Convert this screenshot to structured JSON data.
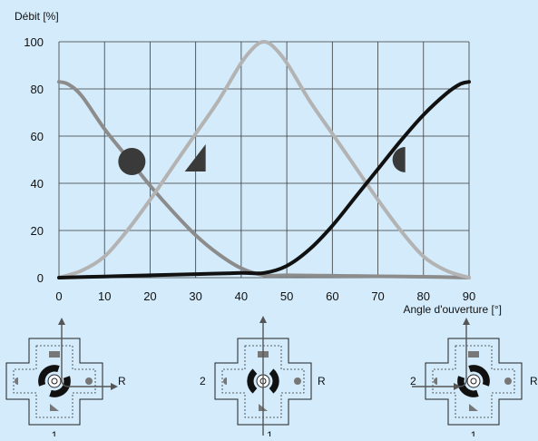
{
  "chart_data": {
    "type": "line",
    "ylabel": "Débit [%]",
    "xlabel": "Angle d'ouverture [°]",
    "xlim": [
      0,
      90
    ],
    "ylim": [
      0,
      100
    ],
    "x_ticks": [
      "0",
      "10",
      "20",
      "30",
      "40",
      "50",
      "60",
      "70",
      "80",
      "90"
    ],
    "y_ticks": [
      "0",
      "20",
      "40",
      "60",
      "80",
      "100"
    ],
    "grid": true,
    "series": [
      {
        "color": "#8c8c8c",
        "marker": "circle",
        "marker_at": [
          16,
          50
        ],
        "x": [
          0,
          2,
          5,
          10,
          15,
          20,
          25,
          30,
          35,
          40,
          45,
          50,
          60,
          70,
          80,
          90
        ],
        "y": [
          83,
          82,
          77,
          63,
          51,
          39,
          28,
          18,
          10,
          4,
          1,
          1,
          0.8,
          0.6,
          0.4,
          0
        ]
      },
      {
        "color": "#b3b3b3",
        "marker": "triangle",
        "marker_at": [
          30,
          50
        ],
        "x": [
          0,
          5,
          10,
          15,
          20,
          25,
          30,
          35,
          40,
          43,
          45,
          47,
          50,
          55,
          60,
          65,
          70,
          75,
          80,
          85,
          90
        ],
        "y": [
          0,
          3,
          9,
          20,
          33,
          47,
          61,
          75,
          91,
          98,
          100,
          98,
          91,
          75,
          61,
          47,
          33,
          20,
          9,
          3,
          0
        ]
      },
      {
        "color": "#111111",
        "marker": "half-circle",
        "marker_at": [
          74,
          50
        ],
        "x": [
          0,
          10,
          20,
          30,
          40,
          45,
          50,
          55,
          60,
          65,
          70,
          75,
          80,
          85,
          88,
          90
        ],
        "y": [
          0,
          0.5,
          1,
          1.5,
          2,
          2,
          5,
          12,
          22,
          34,
          46,
          58,
          69,
          78,
          82,
          83
        ]
      }
    ]
  },
  "valves": [
    {
      "top_label": "",
      "bottom_label": "1",
      "left_label": "",
      "right_label": "R"
    },
    {
      "top_label": "",
      "bottom_label": "1",
      "left_label": "2",
      "right_label": "R"
    },
    {
      "top_label": "",
      "bottom_label": "1",
      "left_label": "2",
      "right_label": "R"
    }
  ]
}
